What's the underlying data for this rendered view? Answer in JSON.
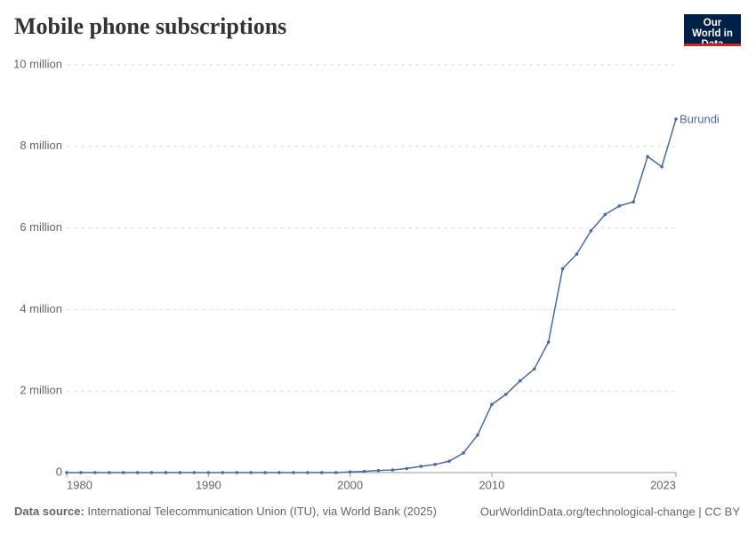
{
  "chart_data": {
    "type": "line",
    "title": "Mobile phone subscriptions",
    "logo": "Our World in Data",
    "source_label": "Data source:",
    "source": "International Telecommunication Union (ITU), via World Bank (2025)",
    "url": "OurWorldinData.org/technological-change | CC BY",
    "x": [
      1980,
      1981,
      1982,
      1983,
      1984,
      1985,
      1986,
      1987,
      1988,
      1989,
      1990,
      1991,
      1992,
      1993,
      1994,
      1995,
      1996,
      1997,
      1998,
      1999,
      2000,
      2001,
      2002,
      2003,
      2004,
      2005,
      2006,
      2007,
      2008,
      2009,
      2010,
      2011,
      2012,
      2013,
      2014,
      2015,
      2016,
      2017,
      2018,
      2019,
      2020,
      2021,
      2022,
      2023
    ],
    "series": [
      {
        "name": "Burundi",
        "color": "#4c6a9c",
        "values": [
          0,
          0,
          0,
          0,
          0,
          0,
          0,
          0,
          0,
          0,
          0,
          0,
          0,
          0,
          0,
          0,
          0,
          0,
          0,
          0,
          16000,
          30000,
          52000,
          64000,
          100000,
          153000,
          200000,
          280000,
          480000,
          920000,
          1670000,
          1920000,
          2250000,
          2540000,
          3200000,
          5000000,
          5360000,
          5930000,
          6330000,
          6540000,
          6640000,
          7750000,
          7500000,
          8670000
        ]
      }
    ],
    "xlim": [
      1980,
      2023
    ],
    "xticks": [
      1980,
      1990,
      2000,
      2010,
      2023
    ],
    "ylim": [
      0,
      10000000
    ],
    "yticks": [
      0,
      {
        "value": 2000000,
        "label": "2 million"
      },
      {
        "value": 4000000,
        "label": "4 million"
      },
      {
        "value": 6000000,
        "label": "6 million"
      },
      {
        "value": 8000000,
        "label": "8 million"
      },
      {
        "value": 10000000,
        "label": "10 million"
      }
    ],
    "grid": true
  }
}
